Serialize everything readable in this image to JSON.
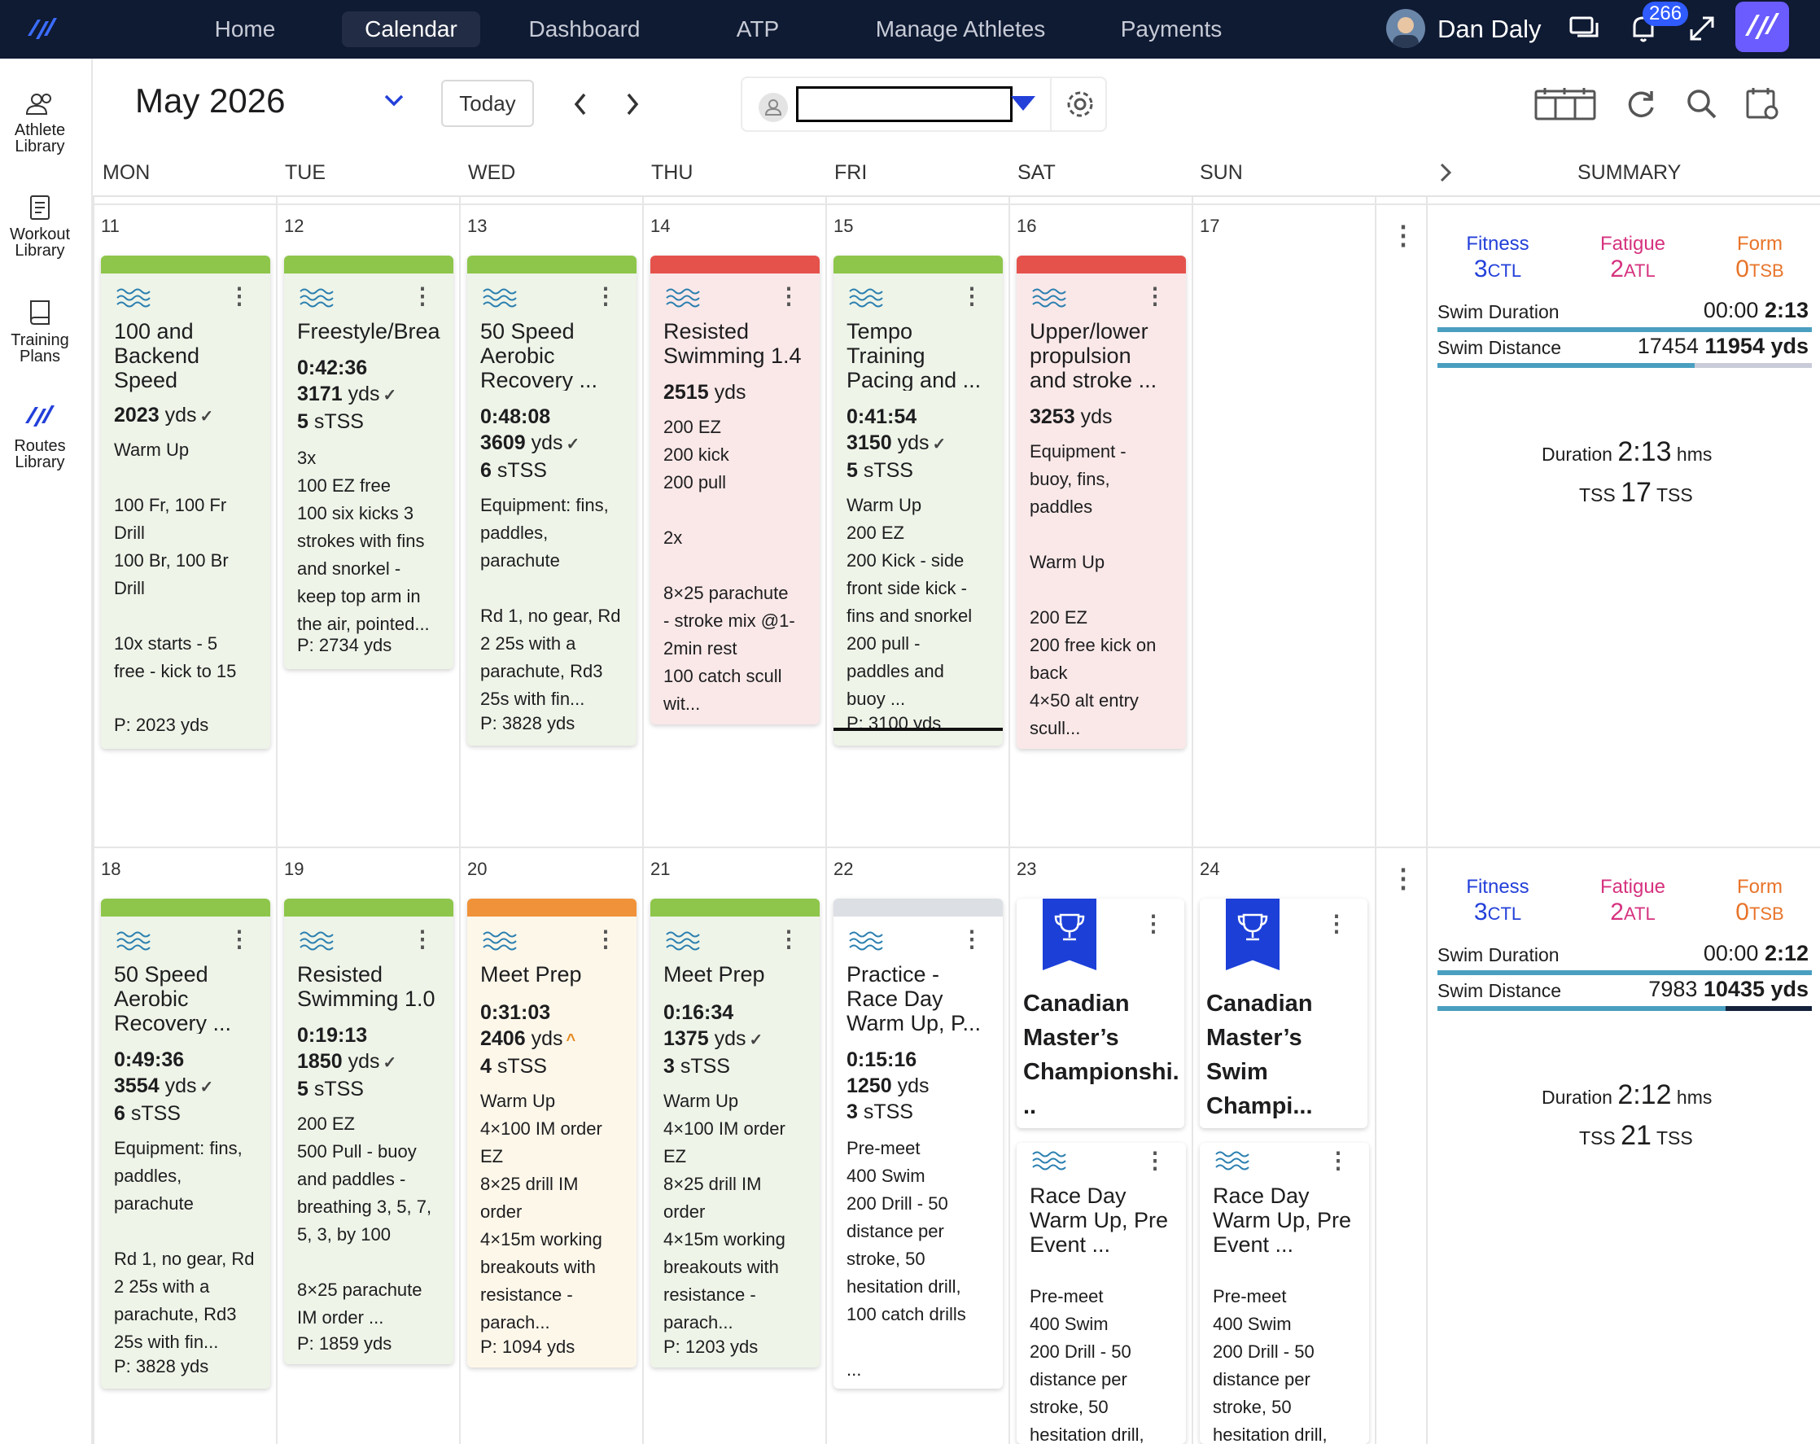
{
  "nav": {
    "items": [
      "Home",
      "Calendar",
      "Dashboard",
      "ATP",
      "Manage Athletes",
      "Payments"
    ],
    "active": "Calendar",
    "user_name": "Dan Daly",
    "notification_count": "266"
  },
  "sidebar": {
    "items": [
      {
        "label": "Athlete\nLibrary",
        "icon": "people-icon"
      },
      {
        "label": "Workout\nLibrary",
        "icon": "document-icon"
      },
      {
        "label": "Training\nPlans",
        "icon": "book-icon"
      },
      {
        "label": "Routes\nLibrary",
        "icon": "routes-logo-icon"
      }
    ]
  },
  "toolbar": {
    "month": "May 2026",
    "today_label": "Today",
    "athlete_value": ""
  },
  "days": [
    "MON",
    "TUE",
    "WED",
    "THU",
    "FRI",
    "SAT",
    "SUN"
  ],
  "summary_header": "SUMMARY",
  "week1": {
    "dates": [
      "11",
      "12",
      "13",
      "14",
      "15",
      "16",
      "17"
    ],
    "cards": [
      {
        "title": "100 and\nBackend\nSpeed",
        "time": "",
        "yds": "2023",
        "stss": "",
        "desc": "Warm Up\n\n100 Fr, 100 Fr\nDrill\n100 Br, 100 Br\nDrill\n\n10x starts - 5\nfree - kick to 15\nwith br...",
        "plan": "P: 2023 yds"
      },
      {
        "title": "Freestyle/Brea",
        "time": "0:42:36",
        "yds": "3171",
        "stss": "5",
        "desc": "3x\n100 EZ free\n100 six kicks 3\nstrokes with fins\nand snorkel -\nkeep top arm in\nthe air, pointed...",
        "plan": "P: 2734 yds"
      },
      {
        "title": "50 Speed\nAerobic\nRecovery ...",
        "time": "0:48:08",
        "yds": "3609",
        "stss": "6",
        "desc": "Equipment: fins,\npaddles,\nparachute\n\nRd 1, no gear, Rd\n2 25s with a\nparachute, Rd3\n25s with fin...",
        "plan": "P: 3828 yds"
      },
      {
        "title": "Resisted\nSwimming 1.4",
        "time": "",
        "yds": "2515",
        "stss": "",
        "desc": "200 EZ\n200 kick\n200 pull\n\n2x\n\n8×25 parachute\n- stroke mix @1-\n2min rest\n100 catch scull\nwit...",
        "plan": ""
      },
      {
        "title": "Tempo\nTraining\nPacing and ...",
        "time": "0:41:54",
        "yds": "3150",
        "stss": "5",
        "desc": "Warm Up\n200 EZ\n200 Kick - side\nfront side kick -\nfins and snorkel\n200 pull -\npaddles and\nbuoy ...",
        "plan": "P: 3100 yds"
      },
      {
        "title": "Upper/lower\npropulsion\nand stroke ...",
        "time": "",
        "yds": "3253",
        "stss": "",
        "desc": "Equipment -\nbuoy, fins,\npaddles\n\nWarm Up\n\n200 EZ\n200 free kick on\nback\n4×50 alt entry\nscull...",
        "plan": ""
      }
    ],
    "summary": {
      "fitness_label": "Fitness",
      "fitness_value": "3",
      "fitness_unit": "CTL",
      "fatigue_label": "Fatigue",
      "fatigue_value": "2",
      "fatigue_unit": "ATL",
      "form_label": "Form",
      "form_value": "0",
      "form_unit": "TSB",
      "swim_duration_label": "Swim Duration",
      "swim_duration_planned": "00:00",
      "swim_duration_actual": "2:13",
      "swim_distance_label": "Swim Distance",
      "swim_distance_planned": "17454",
      "swim_distance_actual": "11954 yds",
      "duration_label": "Duration",
      "duration_value": "2:13",
      "duration_unit": "hms",
      "tss_label": "TSS",
      "tss_value": "17",
      "tss_unit": "TSS"
    }
  },
  "week2": {
    "dates": [
      "18",
      "19",
      "20",
      "21",
      "22",
      "23",
      "24"
    ],
    "cards": [
      {
        "title": "50 Speed\nAerobic\nRecovery ...",
        "time": "0:49:36",
        "yds": "3554",
        "stss": "6",
        "desc": "Equipment: fins,\npaddles,\nparachute\n\nRd 1, no gear, Rd\n2 25s with a\nparachute, Rd3\n25s with fin...",
        "plan": "P: 3828 yds"
      },
      {
        "title": "Resisted\nSwimming 1.0",
        "time": "0:19:13",
        "yds": "1850",
        "stss": "5",
        "desc": "200 EZ\n500 Pull - buoy\nand paddles -\nbreathing 3, 5, 7,\n5, 3, by 100\n\n8×25 parachute\nIM order ...",
        "plan": "P: 1859 yds"
      },
      {
        "title": "Meet Prep",
        "time": "0:31:03",
        "yds": "2406",
        "stss": "4",
        "desc": "Warm Up\n4×100 IM order\nEZ\n8×25 drill IM\norder\n4×15m working\nbreakouts with\nresistance -\nparach...",
        "plan": "P: 1094 yds"
      },
      {
        "title": "Meet Prep",
        "time": "0:16:34",
        "yds": "1375",
        "stss": "3",
        "desc": "Warm Up\n4×100 IM order\nEZ\n8×25 drill IM\norder\n4×15m working\nbreakouts with\nresistance -\nparach...",
        "plan": "P: 1203 yds"
      },
      {
        "title": "Practice -\nRace Day\nWarm Up, P...",
        "time": "0:15:16",
        "yds": "1250",
        "stss": "3",
        "desc": "Pre-meet\n400 Swim\n200 Drill - 50\ndistance per\nstroke, 50\nhesitation drill,\n100 catch drills\n\n...",
        "plan": ""
      }
    ],
    "events": [
      {
        "title": "Canadian\nMaster’s\nChampionshi.\n.."
      },
      {
        "title": "Canadian\nMaster’s\nSwim\nChampi..."
      }
    ],
    "race_cards": [
      {
        "title": "Race Day\nWarm Up, Pre\nEvent ...",
        "desc": "Pre-meet\n400 Swim\n200 Drill - 50\ndistance per\nstroke, 50\nhesitation drill,"
      },
      {
        "title": "Race Day\nWarm Up, Pre\nEvent ...",
        "desc": "Pre-meet\n400 Swim\n200 Drill - 50\ndistance per\nstroke, 50\nhesitation drill,"
      }
    ],
    "summary": {
      "fitness_label": "Fitness",
      "fitness_value": "3",
      "fitness_unit": "CTL",
      "fatigue_label": "Fatigue",
      "fatigue_value": "2",
      "fatigue_unit": "ATL",
      "form_label": "Form",
      "form_value": "0",
      "form_unit": "TSB",
      "swim_duration_label": "Swim Duration",
      "swim_duration_planned": "00:00",
      "swim_duration_actual": "2:12",
      "swim_distance_label": "Swim Distance",
      "swim_distance_planned": "7983",
      "swim_distance_actual": "10435 yds",
      "duration_label": "Duration",
      "duration_value": "2:12",
      "duration_unit": "hms",
      "tss_label": "TSS",
      "tss_value": "21",
      "tss_unit": "TSS"
    }
  },
  "labels": {
    "yds_unit": "yds",
    "stss_unit": "sTSS"
  },
  "colors": {
    "nav_bg": "#0f1a33",
    "green": "#8dc64a",
    "red": "#e5524c",
    "orange": "#f0923a",
    "grey": "#dcdfe4",
    "blue_accent": "#2340d9",
    "fitness": "#2340d9",
    "fatigue": "#d6327f",
    "form": "#e8742a",
    "bar_teal": "#4a9fc0"
  }
}
